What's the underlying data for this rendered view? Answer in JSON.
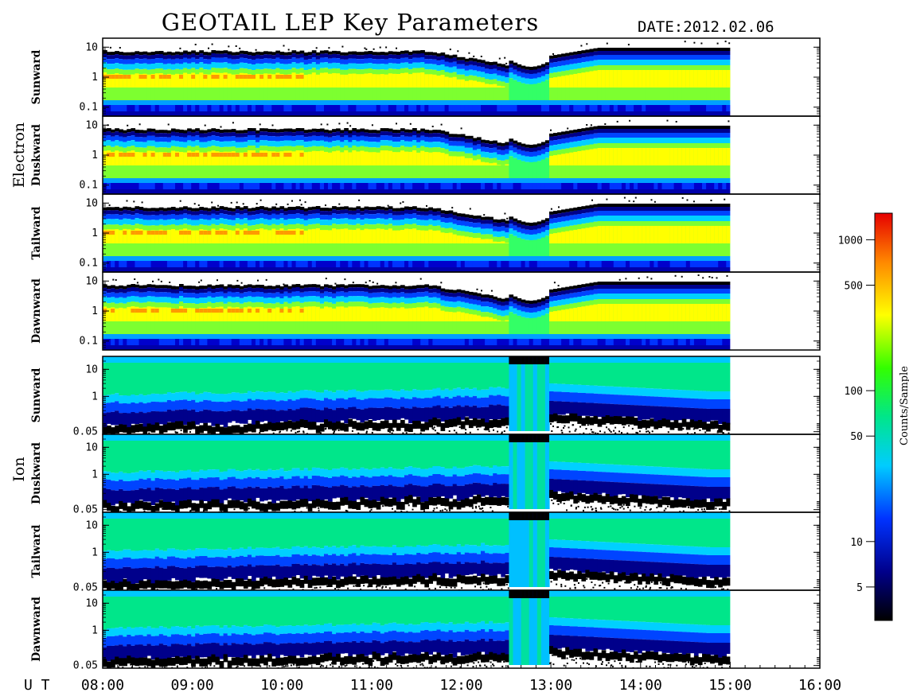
{
  "header": {
    "title": "GEOTAIL LEP Key Parameters",
    "date_label": "DATE:",
    "date_value": "2012.02.06"
  },
  "chart_data": {
    "type": "heatmap",
    "title": "GEOTAIL LEP Key Parameters",
    "date": "2012.02.06",
    "x_axis": {
      "label": "U T",
      "range": [
        "08:00",
        "16:00"
      ],
      "ticks": [
        "08:00",
        "09:00",
        "10:00",
        "11:00",
        "12:00",
        "13:00",
        "14:00",
        "15:00",
        "16:00"
      ],
      "data_end": "15:00"
    },
    "groups": [
      {
        "name": "Electron",
        "y_scale": "log",
        "y_range": [
          0.05,
          20
        ],
        "y_ticks": [
          "10",
          "1",
          "0.1"
        ],
        "panels": [
          "Sunward",
          "Duskward",
          "Tailward",
          "Dawnward"
        ]
      },
      {
        "name": "Ion",
        "y_scale": "log",
        "y_range": [
          0.04,
          30
        ],
        "y_ticks": [
          "10",
          "1",
          "0.05"
        ],
        "panels": [
          "Sunward",
          "Duskward",
          "Tailward",
          "Dawnward"
        ]
      }
    ],
    "colorbar": {
      "label": "Counts/Sample",
      "scale": "log",
      "range": [
        3,
        1500
      ],
      "ticks": [
        1000,
        500,
        100,
        50,
        10,
        5
      ],
      "colors": [
        "#000000",
        "#00008b",
        "#0033ff",
        "#00ccff",
        "#00e68a",
        "#33ff00",
        "#ffff00",
        "#ff8800",
        "#e60000"
      ]
    },
    "features": {
      "dropout_start": "12:33",
      "dropout_end": "13:00"
    },
    "grid": false
  }
}
